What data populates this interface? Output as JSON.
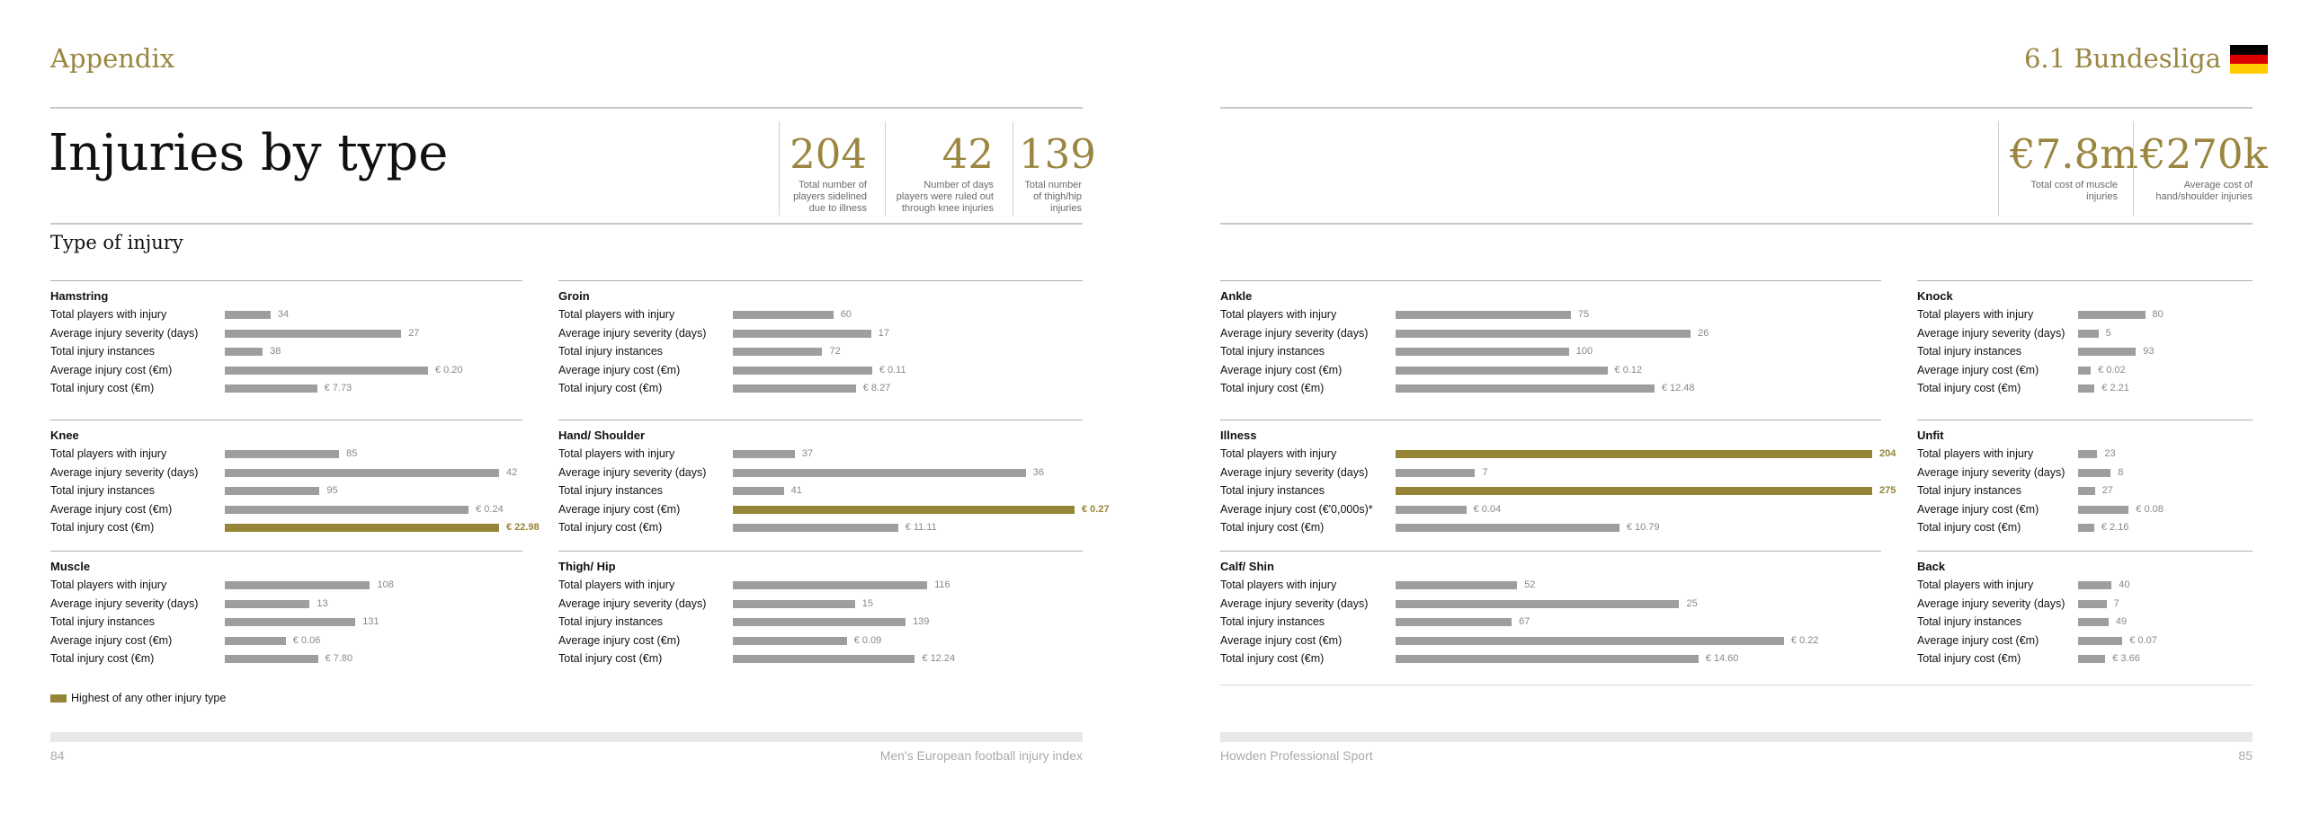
{
  "header": {
    "left_title": "Appendix",
    "right_title": "6.1 Bundesliga",
    "flag_colors": [
      "#000000",
      "#dd0000",
      "#ffcc00"
    ]
  },
  "page_title": "Injuries by type",
  "stats": [
    {
      "value": "204",
      "label": "Total number of players sidelined due to illness"
    },
    {
      "value": "42",
      "label": "Number of days players were ruled out through knee injuries"
    },
    {
      "value": "139",
      "label": "Total number of thigh/hip injuries"
    },
    {
      "value": "€7.8m",
      "label": "Total cost of muscle injuries"
    },
    {
      "value": "€270k",
      "label": "Average cost of hand/shoulder injuries"
    }
  ],
  "section_title": "Type of injury",
  "colors": {
    "gold": "#968536",
    "bar": "#9e9e9e"
  },
  "chart_data": {
    "type": "bar",
    "highlight_meaning": "Highest of any other injury type",
    "blocks": [
      {
        "name": "Hamstring",
        "rows": [
          {
            "label": "Total players with injury",
            "value": 34,
            "text": "34"
          },
          {
            "label": "Average injury severity (days)",
            "value": 27,
            "text": "27"
          },
          {
            "label": "Total injury instances",
            "value": 38,
            "text": "38"
          },
          {
            "label": "Average injury cost (€m)",
            "value": 0.2,
            "text": "€ 0.20"
          },
          {
            "label": "Total injury cost (€m)",
            "value": 7.73,
            "text": "€ 7.73"
          }
        ]
      },
      {
        "name": "Groin",
        "rows": [
          {
            "label": "Total players with injury",
            "value": 60,
            "text": "60"
          },
          {
            "label": "Average injury severity (days)",
            "value": 17,
            "text": "17"
          },
          {
            "label": "Total injury instances",
            "value": 72,
            "text": "72"
          },
          {
            "label": "Average injury cost (€m)",
            "value": 0.11,
            "text": "€ 0.11"
          },
          {
            "label": "Total injury cost (€m)",
            "value": 8.27,
            "text": "€ 8.27"
          }
        ]
      },
      {
        "name": "Knee",
        "rows": [
          {
            "label": "Total players with injury",
            "value": 85,
            "text": "85"
          },
          {
            "label": "Average injury severity (days)",
            "value": 42,
            "text": "42"
          },
          {
            "label": "Total injury instances",
            "value": 95,
            "text": "95"
          },
          {
            "label": "Average injury cost (€m)",
            "value": 0.24,
            "text": "€ 0.24"
          },
          {
            "label": "Total injury cost (€m)",
            "value": 22.98,
            "text": "€ 22.98",
            "highlight": true
          }
        ]
      },
      {
        "name": "Hand/ Shoulder",
        "rows": [
          {
            "label": "Total players with injury",
            "value": 37,
            "text": "37"
          },
          {
            "label": "Average injury severity (days)",
            "value": 36,
            "text": "36"
          },
          {
            "label": "Total injury instances",
            "value": 41,
            "text": "41"
          },
          {
            "label": "Average injury cost (€m)",
            "value": 0.27,
            "text": "€ 0.27",
            "highlight": true
          },
          {
            "label": "Total injury cost (€m)",
            "value": 11.11,
            "text": "€ 11.11"
          }
        ]
      },
      {
        "name": "Muscle",
        "rows": [
          {
            "label": "Total players with injury",
            "value": 108,
            "text": "108"
          },
          {
            "label": "Average injury severity (days)",
            "value": 13,
            "text": "13"
          },
          {
            "label": "Total injury instances",
            "value": 131,
            "text": "131"
          },
          {
            "label": "Average injury cost (€m)",
            "value": 0.06,
            "text": "€ 0.06"
          },
          {
            "label": "Total injury cost (€m)",
            "value": 7.8,
            "text": "€ 7.80"
          }
        ]
      },
      {
        "name": "Thigh/ Hip",
        "rows": [
          {
            "label": "Total players with injury",
            "value": 116,
            "text": "116"
          },
          {
            "label": "Average injury severity (days)",
            "value": 15,
            "text": "15"
          },
          {
            "label": "Total injury instances",
            "value": 139,
            "text": "139"
          },
          {
            "label": "Average injury cost (€m)",
            "value": 0.09,
            "text": "€ 0.09"
          },
          {
            "label": "Total injury cost (€m)",
            "value": 12.24,
            "text": "€ 12.24"
          }
        ]
      },
      {
        "name": "Ankle",
        "rows": [
          {
            "label": "Total players with injury",
            "value": 75,
            "text": "75"
          },
          {
            "label": "Average injury severity (days)",
            "value": 26,
            "text": "26"
          },
          {
            "label": "Total injury instances",
            "value": 100,
            "text": "100"
          },
          {
            "label": "Average injury cost (€m)",
            "value": 0.12,
            "text": "€ 0.12"
          },
          {
            "label": "Total injury cost (€m)",
            "value": 12.48,
            "text": "€ 12.48"
          }
        ]
      },
      {
        "name": "Knock",
        "rows": [
          {
            "label": "Total players with injury",
            "value": 80,
            "text": "80"
          },
          {
            "label": "Average injury severity (days)",
            "value": 5,
            "text": "5"
          },
          {
            "label": "Total injury instances",
            "value": 93,
            "text": "93"
          },
          {
            "label": "Average injury cost (€m)",
            "value": 0.02,
            "text": "€ 0.02"
          },
          {
            "label": "Total injury cost (€m)",
            "value": 2.21,
            "text": "€ 2.21"
          }
        ]
      },
      {
        "name": "Illness",
        "rows": [
          {
            "label": "Total players with injury",
            "value": 204,
            "text": "204",
            "highlight": true
          },
          {
            "label": "Average injury severity (days)",
            "value": 7,
            "text": "7"
          },
          {
            "label": "Total injury instances",
            "value": 275,
            "text": "275",
            "highlight": true
          },
          {
            "label": "Average injury cost (€'0,000s)*",
            "value": 0.04,
            "text": "€ 0.04"
          },
          {
            "label": "Total injury cost (€m)",
            "value": 10.79,
            "text": "€ 10.79"
          }
        ]
      },
      {
        "name": "Unfit",
        "rows": [
          {
            "label": "Total players with injury",
            "value": 23,
            "text": "23"
          },
          {
            "label": "Average injury severity (days)",
            "value": 8,
            "text": "8"
          },
          {
            "label": "Total injury instances",
            "value": 27,
            "text": "27"
          },
          {
            "label": "Average injury cost (€m)",
            "value": 0.08,
            "text": "€ 0.08"
          },
          {
            "label": "Total injury cost (€m)",
            "value": 2.16,
            "text": "€ 2.16"
          }
        ]
      },
      {
        "name": "Calf/ Shin",
        "rows": [
          {
            "label": "Total players with injury",
            "value": 52,
            "text": "52"
          },
          {
            "label": "Average injury severity (days)",
            "value": 25,
            "text": "25"
          },
          {
            "label": "Total injury instances",
            "value": 67,
            "text": "67"
          },
          {
            "label": "Average injury cost (€m)",
            "value": 0.22,
            "text": "€ 0.22"
          },
          {
            "label": "Total injury cost (€m)",
            "value": 14.6,
            "text": "€ 14.60"
          }
        ]
      },
      {
        "name": "Back",
        "rows": [
          {
            "label": "Total players with injury",
            "value": 40,
            "text": "40"
          },
          {
            "label": "Average injury severity (days)",
            "value": 7,
            "text": "7"
          },
          {
            "label": "Total injury instances",
            "value": 49,
            "text": "49"
          },
          {
            "label": "Average injury cost (€m)",
            "value": 0.07,
            "text": "€ 0.07"
          },
          {
            "label": "Total injury cost (€m)",
            "value": 3.66,
            "text": "€ 3.66"
          }
        ]
      }
    ]
  },
  "legend": {
    "label": "Highest of any other injury type"
  },
  "footer": {
    "left_page": "84",
    "left_text": "Men's European football injury index",
    "right_text": "Howden Professional Sport",
    "right_page": "85"
  }
}
